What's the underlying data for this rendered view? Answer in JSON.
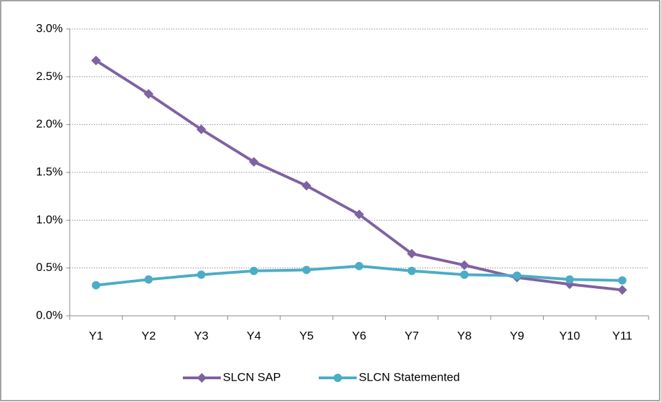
{
  "chart_data": {
    "type": "line",
    "categories": [
      "Y1",
      "Y2",
      "Y3",
      "Y4",
      "Y5",
      "Y6",
      "Y7",
      "Y8",
      "Y9",
      "Y10",
      "Y11"
    ],
    "series": [
      {
        "name": "SLCN SAP",
        "color": "#7f62a1",
        "marker": "diamond",
        "values": [
          2.67,
          2.32,
          1.95,
          1.61,
          1.36,
          1.06,
          0.65,
          0.53,
          0.4,
          0.33,
          0.27
        ]
      },
      {
        "name": "SLCN Statemented",
        "color": "#4bacc6",
        "marker": "circle",
        "values": [
          0.32,
          0.38,
          0.43,
          0.47,
          0.48,
          0.52,
          0.47,
          0.43,
          0.42,
          0.38,
          0.37
        ]
      }
    ],
    "ylim": [
      0,
      3
    ],
    "yticks": [
      {
        "value": 0,
        "label": "0.0%"
      },
      {
        "value": 0.5,
        "label": "0.5%"
      },
      {
        "value": 1,
        "label": "1.0%"
      },
      {
        "value": 1.5,
        "label": "1.5%"
      },
      {
        "value": 2,
        "label": "2.0%"
      },
      {
        "value": 2.5,
        "label": "2.5%"
      },
      {
        "value": 3,
        "label": "3.0%"
      }
    ],
    "grid": true,
    "legend": "bottom"
  }
}
